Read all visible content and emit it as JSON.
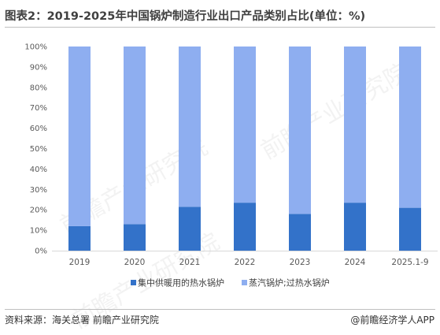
{
  "title": "图表2：2019-2025年中国锅炉制造行业出口产品类别占比(单位：%)",
  "footer": {
    "source": "资料来源：海关总署 前瞻产业研究院",
    "brand": "@前瞻经济学人APP"
  },
  "watermark": "前瞻产业研究院",
  "chart_data": {
    "type": "bar",
    "stacked": true,
    "categories": [
      "2019",
      "2020",
      "2021",
      "2022",
      "2023",
      "2024",
      "2025.1-9"
    ],
    "series": [
      {
        "name": "集中供暖用的热水锅炉",
        "color": "#3372c9",
        "values": [
          12,
          13,
          21.5,
          23.5,
          18,
          23.5,
          21
        ]
      },
      {
        "name": "蒸汽锅炉;过热水锅炉",
        "color": "#8eaef0",
        "values": [
          88,
          87,
          78.5,
          76.5,
          82,
          76.5,
          79
        ]
      }
    ],
    "yticks": [
      "0%",
      "10%",
      "20%",
      "30%",
      "40%",
      "50%",
      "60%",
      "70%",
      "80%",
      "90%",
      "100%"
    ],
    "ylim": [
      0,
      100
    ],
    "legend_position": "bottom",
    "grid": false
  }
}
